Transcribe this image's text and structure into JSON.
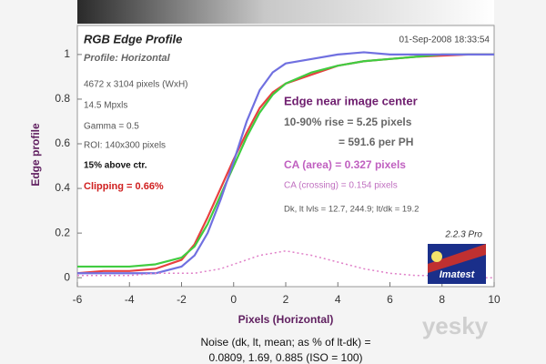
{
  "chart_data": {
    "type": "line",
    "title": "RGB Edge Profile",
    "subtitle": "Profile: Horizontal",
    "date": "01-Sep-2008 18:33:54",
    "x_label": "Pixels (Horizontal)",
    "y_label": "Edge profile",
    "info": [
      "4672 x 3104 pixels (WxH)",
      "14.5 Mpxls",
      "Gamma = 0.5",
      "ROI: 140x300 pixels",
      "15% above ctr."
    ],
    "clipping": "Clipping =  0.66%",
    "results": {
      "heading": "Edge near image center",
      "rise": "10-90% rise = 5.25 pixels",
      "per_ph": "= 591.6 per PH",
      "ca_area": "CA (area) = 0.327 pixels",
      "ca_crossing": "CA (crossing) = 0.154 pixels",
      "levels": "Dk, lt lvls = 12.7, 244.9;  lt/dk = 19.2"
    },
    "version": "2.2.3  Pro",
    "logo": "Imatest",
    "noise_text": [
      "Noise (dk, lt, mean; as % of lt-dk) =",
      "0.0809, 1.69, 0.885 (ISO = 100)"
    ],
    "watermark": "yesky",
    "x": [
      -6,
      -5,
      -4,
      -3,
      -2,
      -1.5,
      -1,
      -0.5,
      0,
      0.5,
      1,
      1.5,
      2,
      3,
      4,
      5,
      6,
      7,
      8,
      9,
      10
    ],
    "series": [
      {
        "name": "Red",
        "color": "#e84040",
        "style": "solid",
        "values": [
          0.02,
          0.03,
          0.03,
          0.04,
          0.08,
          0.15,
          0.27,
          0.4,
          0.53,
          0.65,
          0.76,
          0.83,
          0.87,
          0.91,
          0.95,
          0.97,
          0.98,
          0.99,
          0.995,
          1.0,
          1.0
        ]
      },
      {
        "name": "Green",
        "color": "#40cc40",
        "style": "solid",
        "values": [
          0.05,
          0.05,
          0.05,
          0.06,
          0.09,
          0.14,
          0.24,
          0.37,
          0.5,
          0.63,
          0.74,
          0.82,
          0.87,
          0.92,
          0.95,
          0.97,
          0.98,
          0.99,
          1.0,
          1.0,
          1.0
        ]
      },
      {
        "name": "Blue",
        "color": "#7070e0",
        "style": "solid",
        "values": [
          0.02,
          0.02,
          0.02,
          0.02,
          0.05,
          0.1,
          0.2,
          0.35,
          0.52,
          0.7,
          0.84,
          0.92,
          0.96,
          0.98,
          1.0,
          1.01,
          1.0,
          1.0,
          1.0,
          1.0,
          1.0
        ]
      },
      {
        "name": "Noise",
        "color": "#e080c8",
        "style": "dotted",
        "values": [
          0.01,
          0.01,
          0.01,
          0.02,
          0.02,
          0.02,
          0.03,
          0.04,
          0.06,
          0.08,
          0.1,
          0.11,
          0.12,
          0.1,
          0.07,
          0.04,
          0.02,
          0.01,
          0.01,
          0.0,
          0.0
        ]
      }
    ],
    "xlim": [
      -6,
      10
    ],
    "xticks": [
      -6,
      -4,
      -2,
      0,
      2,
      4,
      6,
      8,
      10
    ],
    "ylim": [
      -0.04,
      1.13
    ],
    "yticks": [
      0,
      0.2,
      0.4,
      0.6,
      0.8,
      1
    ],
    "grid": false
  }
}
